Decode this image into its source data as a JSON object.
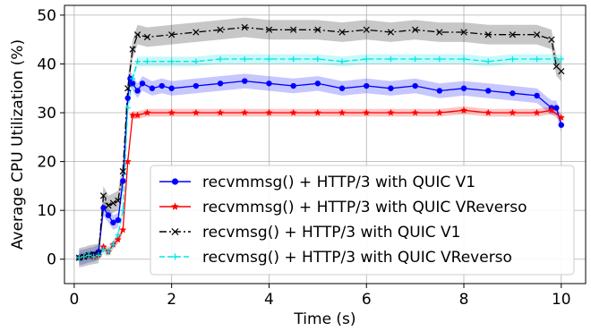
{
  "chart_data": {
    "type": "line",
    "xlabel": "Time (s)",
    "ylabel": "Average CPU Utilization (%)",
    "xlim": [
      -0.2,
      10.5
    ],
    "ylim": [
      -5,
      52
    ],
    "xticks": [
      0,
      2,
      4,
      6,
      8,
      10
    ],
    "yticks": [
      0,
      10,
      20,
      30,
      40,
      50
    ],
    "grid": true,
    "legend_position": "lower-right",
    "series": [
      {
        "name": "recvmmsg() + HTTP/3 with QUIC V1",
        "color": "#0000ff",
        "linestyle": "solid",
        "marker": "circle",
        "band": 1.5,
        "x": [
          0.1,
          0.2,
          0.3,
          0.4,
          0.5,
          0.6,
          0.7,
          0.8,
          0.9,
          1.0,
          1.1,
          1.15,
          1.2,
          1.3,
          1.4,
          1.6,
          1.8,
          2.0,
          2.5,
          3.0,
          3.5,
          4.0,
          4.5,
          5.0,
          5.5,
          6.0,
          6.5,
          7.0,
          7.5,
          8.0,
          8.5,
          9.0,
          9.5,
          9.8,
          9.9,
          10.0
        ],
        "y": [
          0.3,
          0.5,
          0.8,
          1.0,
          1.5,
          10.5,
          9.0,
          7.5,
          8.0,
          16.0,
          33.0,
          37.0,
          36.0,
          34.5,
          36.0,
          35.0,
          35.5,
          35.0,
          35.5,
          36.0,
          36.5,
          36.0,
          35.5,
          36.0,
          35.0,
          35.5,
          35.0,
          35.5,
          34.5,
          35.0,
          34.5,
          34.0,
          33.5,
          31.0,
          31.0,
          27.5
        ]
      },
      {
        "name": "recvmmsg() + HTTP/3 with QUIC VReverso",
        "color": "#ff0000",
        "linestyle": "solid",
        "marker": "star",
        "band": 0.8,
        "x": [
          0.1,
          0.2,
          0.3,
          0.4,
          0.5,
          0.6,
          0.7,
          0.8,
          0.9,
          1.0,
          1.1,
          1.2,
          1.3,
          1.5,
          2.0,
          2.5,
          3.0,
          3.5,
          4.0,
          4.5,
          5.0,
          5.5,
          6.0,
          6.5,
          7.0,
          7.5,
          8.0,
          8.5,
          9.0,
          9.5,
          9.8,
          10.0
        ],
        "y": [
          0.3,
          0.5,
          0.8,
          0.5,
          0.8,
          2.5,
          1.5,
          3.0,
          4.0,
          6.0,
          20.0,
          29.5,
          29.5,
          30.0,
          30.0,
          30.0,
          30.0,
          30.0,
          30.0,
          30.0,
          30.0,
          30.0,
          30.0,
          30.0,
          30.0,
          30.0,
          30.5,
          30.0,
          30.0,
          30.0,
          30.5,
          29.0
        ]
      },
      {
        "name": "recvmsg() + HTTP/3 with QUIC V1",
        "color": "#000000",
        "linestyle": "dashdot",
        "marker": "x",
        "band": 2.0,
        "x": [
          0.1,
          0.2,
          0.3,
          0.4,
          0.5,
          0.6,
          0.7,
          0.8,
          0.9,
          1.0,
          1.1,
          1.2,
          1.3,
          1.5,
          2.0,
          2.5,
          3.0,
          3.5,
          4.0,
          4.5,
          5.0,
          5.5,
          6.0,
          6.5,
          7.0,
          7.5,
          8.0,
          8.5,
          9.0,
          9.5,
          9.8,
          9.9,
          10.0
        ],
        "y": [
          0.3,
          0.5,
          0.8,
          1.0,
          1.2,
          13.0,
          11.0,
          11.5,
          12.0,
          18.0,
          35.0,
          43.0,
          46.0,
          45.5,
          46.0,
          46.5,
          47.0,
          47.5,
          47.0,
          47.0,
          47.0,
          46.5,
          47.0,
          46.5,
          47.0,
          46.5,
          46.5,
          46.0,
          46.0,
          46.0,
          45.0,
          39.5,
          38.5
        ]
      },
      {
        "name": "recvmsg() + HTTP/3 with QUIC VReverso",
        "color": "#00e5e5",
        "linestyle": "dashed",
        "marker": "plus",
        "band": 1.0,
        "x": [
          0.1,
          0.2,
          0.3,
          0.4,
          0.5,
          0.6,
          0.7,
          0.8,
          0.9,
          1.0,
          1.1,
          1.2,
          1.3,
          1.5,
          2.0,
          2.5,
          3.0,
          3.5,
          4.0,
          4.5,
          5.0,
          5.5,
          6.0,
          6.5,
          7.0,
          7.5,
          8.0,
          8.5,
          9.0,
          9.5,
          10.0
        ],
        "y": [
          0.3,
          0.5,
          0.8,
          0.5,
          0.8,
          2.0,
          1.5,
          3.0,
          5.0,
          10.0,
          31.0,
          37.0,
          40.5,
          40.5,
          40.5,
          40.5,
          41.0,
          41.0,
          41.0,
          41.0,
          41.0,
          40.5,
          41.0,
          41.0,
          41.0,
          41.0,
          41.0,
          40.5,
          41.0,
          41.0,
          41.0
        ]
      }
    ]
  }
}
